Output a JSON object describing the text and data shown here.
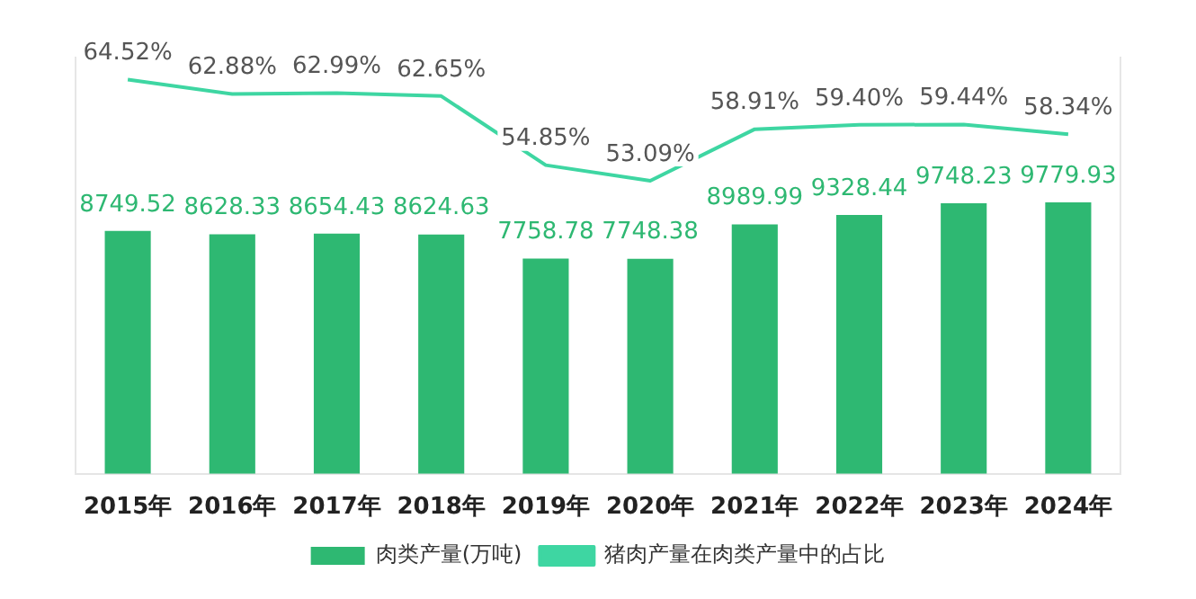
{
  "chart_data": {
    "type": "bar",
    "categories": [
      "2015年",
      "2016年",
      "2017年",
      "2018年",
      "2019年",
      "2020年",
      "2021年",
      "2022年",
      "2023年",
      "2024年"
    ],
    "series": [
      {
        "name": "肉类产量(万吨)",
        "color": "#2eb872",
        "values": [
          8749.52,
          8628.33,
          8654.43,
          8624.63,
          7758.78,
          7748.38,
          8989.99,
          9328.44,
          9748.23,
          9779.93
        ],
        "value_labels": [
          "8749.52",
          "8628.33",
          "8654.43",
          "8624.63",
          "7758.78",
          "7748.38",
          "8989.99",
          "9328.44",
          "9748.23",
          "9779.93"
        ]
      },
      {
        "name": "猪肉产量在肉类产量中的占比",
        "type": "line",
        "axis": "y2",
        "color": "#3ed6a2",
        "values": [
          64.52,
          62.88,
          62.99,
          62.65,
          54.85,
          53.09,
          58.91,
          59.4,
          59.44,
          58.34
        ],
        "value_labels": [
          "64.52%",
          "62.88%",
          "62.99%",
          "62.65%",
          "54.85%",
          "53.09%",
          "58.91%",
          "59.40%",
          "59.44%",
          "58.34%"
        ]
      }
    ],
    "ylim": [
      0,
      15000
    ],
    "y2lim": [
      20,
      67
    ],
    "tick_labels": "x",
    "legend": "bottom",
    "grid": false,
    "marker": "none"
  }
}
